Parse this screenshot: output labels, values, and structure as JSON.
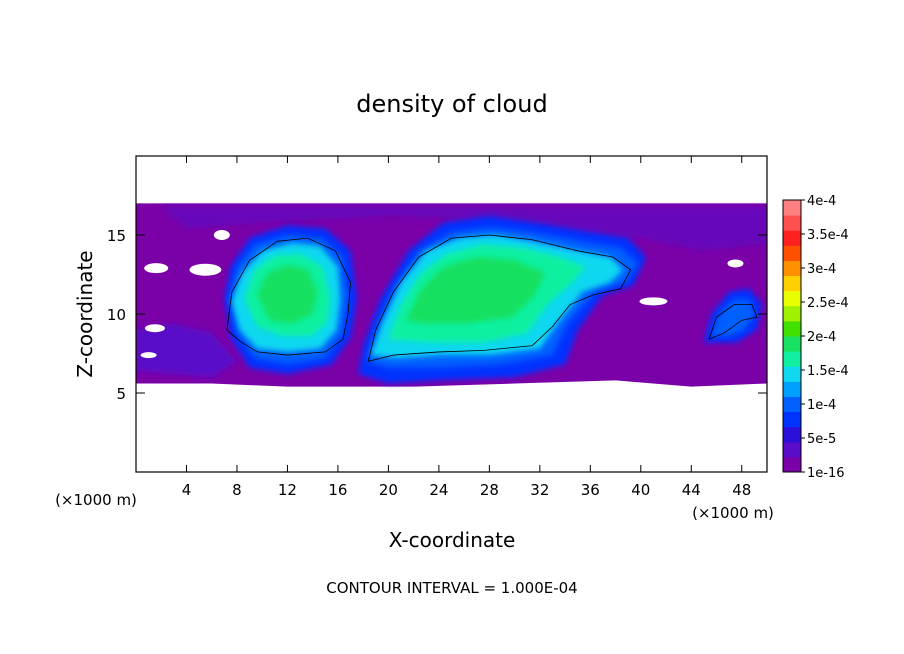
{
  "chart_data": {
    "type": "heatmap",
    "title": "density of cloud",
    "xlabel": "X-coordinate",
    "ylabel": "Z-coordinate",
    "x_unit_left": "(×1000 m)",
    "x_unit_right": "(×1000 m)",
    "footer": "CONTOUR INTERVAL = 1.000E-04",
    "xlim": [
      0,
      50
    ],
    "ylim": [
      0,
      20
    ],
    "x_ticks": [
      4,
      8,
      12,
      16,
      20,
      24,
      28,
      32,
      36,
      40,
      44,
      48
    ],
    "y_ticks": [
      5,
      10,
      15
    ],
    "colorbar": {
      "labels": [
        "4e-4",
        "3.5e-4",
        "3e-4",
        "2.5e-4",
        "2e-4",
        "1.5e-4",
        "1e-4",
        "5e-5",
        "1e-16"
      ],
      "values": [
        0.0004,
        0.00035,
        0.0003,
        0.00025,
        0.0002,
        0.00015,
        0.0001,
        5e-05,
        1e-16
      ],
      "colors": [
        "#7a00a8",
        "#5a0cc8",
        "#2a10d8",
        "#0033ff",
        "#0060ff",
        "#00a0ff",
        "#10d8f0",
        "#10f0a0",
        "#18e060",
        "#40e000",
        "#a0f000",
        "#e8ff00",
        "#ffd000",
        "#ff9000",
        "#ff5000",
        "#ff2020",
        "#ff5050",
        "#ff8080"
      ]
    },
    "cloud_regions": [
      {
        "name": "background layer",
        "x_range": [
          0,
          50
        ],
        "z_range": [
          5.5,
          17
        ],
        "level": "1e-16 to 5e-5"
      },
      {
        "name": "left cell",
        "x_center": 13,
        "z_center": 11,
        "peak": "2e-4"
      },
      {
        "name": "right cell",
        "x_center": 27,
        "z_center": 12,
        "peak": "2e-4"
      },
      {
        "name": "small cell",
        "x_center": 47,
        "z_center": 9.5,
        "peak": "1e-4"
      }
    ],
    "grid": false
  }
}
